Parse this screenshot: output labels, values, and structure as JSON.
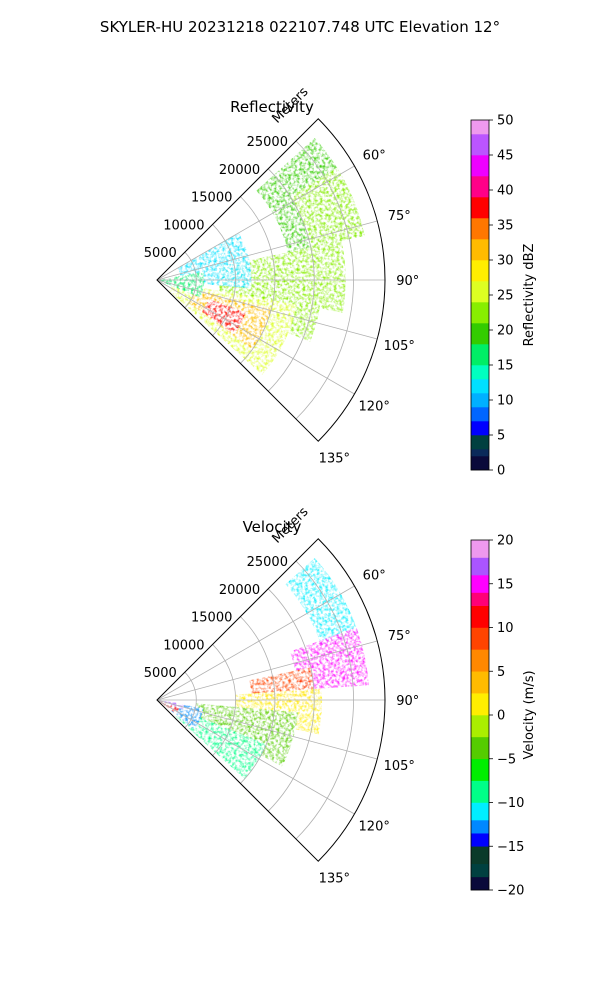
{
  "figure": {
    "title": "SKYLER-HU  20231218  022107.748 UTC Elevation 12°"
  },
  "chart_data": [
    {
      "type": "polar-ppi",
      "title": "Reflectivity",
      "range_label": "Meters",
      "range_ticks": [
        5000,
        10000,
        15000,
        20000,
        25000
      ],
      "range_tick_labels": [
        "5000",
        "10000",
        "15000",
        "20000",
        "25000"
      ],
      "range_max": 29000,
      "azimuth_range_deg": [
        45,
        135
      ],
      "azimuth_ticks_deg": [
        60,
        75,
        90,
        105,
        120,
        135
      ],
      "azimuth_tick_labels": [
        "60°",
        "75°",
        "90°",
        "105°",
        "120°",
        "135°"
      ],
      "grid": true,
      "colorbar": {
        "label": "Reflectivity dBZ",
        "min": 0,
        "max": 50,
        "ticks": [
          0,
          5,
          10,
          15,
          20,
          25,
          30,
          35,
          40,
          45,
          50
        ],
        "tick_labels": [
          "0",
          "5",
          "10",
          "15",
          "20",
          "25",
          "30",
          "35",
          "40",
          "45",
          "50"
        ]
      },
      "echo_regions": [
        {
          "az": [
            48,
            78
          ],
          "r": [
            17000,
            27000
          ],
          "value": 19
        },
        {
          "az": [
            58,
            78
          ],
          "r": [
            20000,
            27000
          ],
          "value": 22
        },
        {
          "az": [
            78,
            100
          ],
          "r": [
            8000,
            24000
          ],
          "value": 21
        },
        {
          "az": [
            85,
            112
          ],
          "r": [
            8000,
            21000
          ],
          "value": 21
        },
        {
          "az": [
            100,
            132
          ],
          "r": [
            2000,
            18000
          ],
          "value": 25
        },
        {
          "az": [
            104,
            126
          ],
          "r": [
            5000,
            15000
          ],
          "value": 32
        },
        {
          "az": [
            110,
            125
          ],
          "r": [
            7000,
            12000
          ],
          "value": 38
        },
        {
          "az": [
            60,
            95
          ],
          "r": [
            3000,
            12000
          ],
          "value": 12
        },
        {
          "az": [
            80,
            112
          ],
          "r": [
            400,
            6000
          ],
          "value": 16
        }
      ]
    },
    {
      "type": "polar-ppi",
      "title": "Velocity",
      "range_label": "Meters",
      "range_ticks": [
        5000,
        10000,
        15000,
        20000,
        25000
      ],
      "range_tick_labels": [
        "5000",
        "10000",
        "15000",
        "20000",
        "25000"
      ],
      "range_max": 29000,
      "azimuth_range_deg": [
        45,
        135
      ],
      "azimuth_ticks_deg": [
        60,
        75,
        90,
        105,
        120,
        135
      ],
      "azimuth_tick_labels": [
        "60°",
        "75°",
        "90°",
        "105°",
        "120°",
        "135°"
      ],
      "grid": true,
      "colorbar": {
        "label": "Velocity (m/s)",
        "min": -20,
        "max": 20,
        "ticks": [
          -20,
          -15,
          -10,
          -5,
          0,
          5,
          10,
          15,
          20
        ],
        "tick_labels": [
          "−20",
          "−15",
          "−10",
          "−5",
          "0",
          "5",
          "10",
          "15",
          "20"
        ]
      },
      "echo_regions": [
        {
          "az": [
            48,
            72
          ],
          "r": [
            22000,
            27000
          ],
          "value": -12
        },
        {
          "az": [
            70,
            86
          ],
          "r": [
            18000,
            27000
          ],
          "value": 15
        },
        {
          "az": [
            78,
            92
          ],
          "r": [
            12000,
            20000
          ],
          "value": 9
        },
        {
          "az": [
            86,
            102
          ],
          "r": [
            10000,
            21000
          ],
          "value": 1
        },
        {
          "az": [
            95,
            118
          ],
          "r": [
            5000,
            18000
          ],
          "value": -3
        },
        {
          "az": [
            112,
            132
          ],
          "r": [
            3000,
            15000
          ],
          "value": -8
        },
        {
          "az": [
            100,
            128
          ],
          "r": [
            2000,
            6000
          ],
          "value": -13
        },
        {
          "az": [
            104,
            126
          ],
          "r": [
            500,
            3000
          ],
          "value": 12
        },
        {
          "az": [
            98,
            110
          ],
          "r": [
            400,
            3500
          ],
          "value": 16
        }
      ]
    }
  ]
}
